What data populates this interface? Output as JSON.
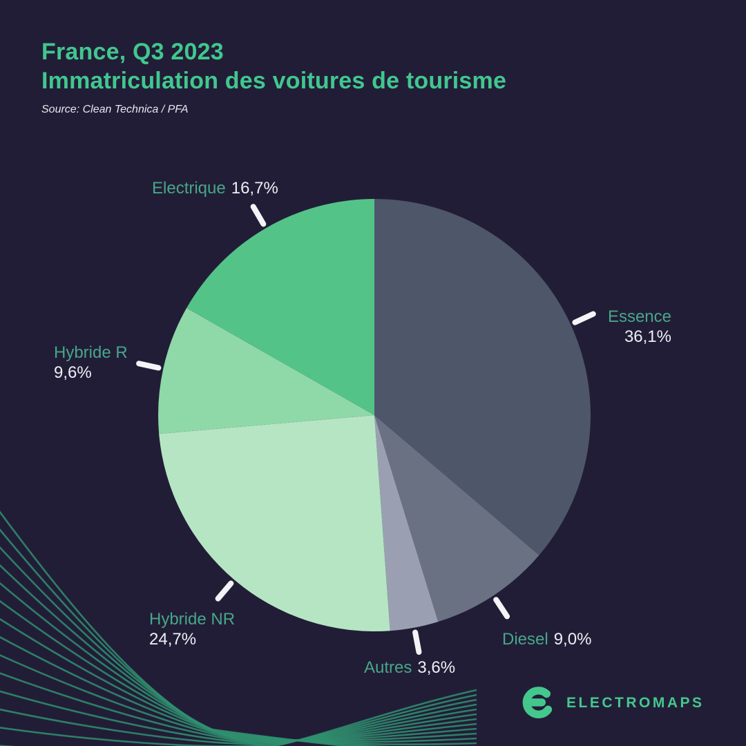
{
  "header": {
    "title_line1": "France, Q3 2023",
    "title_line2": "Immatriculation des voitures de tourisme",
    "source": "Source: Clean Technica / PFA"
  },
  "chart_data": {
    "type": "pie",
    "title": "France, Q3 2023 — Immatriculation des voitures de tourisme",
    "source": "Source: Clean Technica / PFA",
    "start_angle_deg": 0,
    "direction": "clockwise",
    "legend_position": "labels-around-pie",
    "slices": [
      {
        "label": "Essence",
        "value_pct": 36.1,
        "display": "36,1%",
        "color": "#4e566a"
      },
      {
        "label": "Diesel",
        "value_pct": 9.0,
        "display": "9,0%",
        "color": "#6a7183"
      },
      {
        "label": "Autres",
        "value_pct": 3.6,
        "display": "3,6%",
        "color": "#9aa0b2"
      },
      {
        "label": "Hybride NR",
        "value_pct": 24.7,
        "display": "24,7%",
        "color": "#b6e5c4"
      },
      {
        "label": "Hybride R",
        "value_pct": 9.6,
        "display": "9,6%",
        "color": "#8fd8a8"
      },
      {
        "label": "Electrique",
        "value_pct": 16.7,
        "display": "16,7%",
        "color": "#54c388"
      }
    ]
  },
  "footer": {
    "brand": "ELECTROMAPS",
    "logo_icon": "electromaps-e-icon"
  },
  "colors": {
    "background": "#221d37",
    "title_green": "#41c78e",
    "label_green": "#46a788",
    "value_white": "#edeff3",
    "tick_white": "#f4f4f7",
    "deco_green": "#2f9070",
    "logo_green": "#44c78d"
  }
}
